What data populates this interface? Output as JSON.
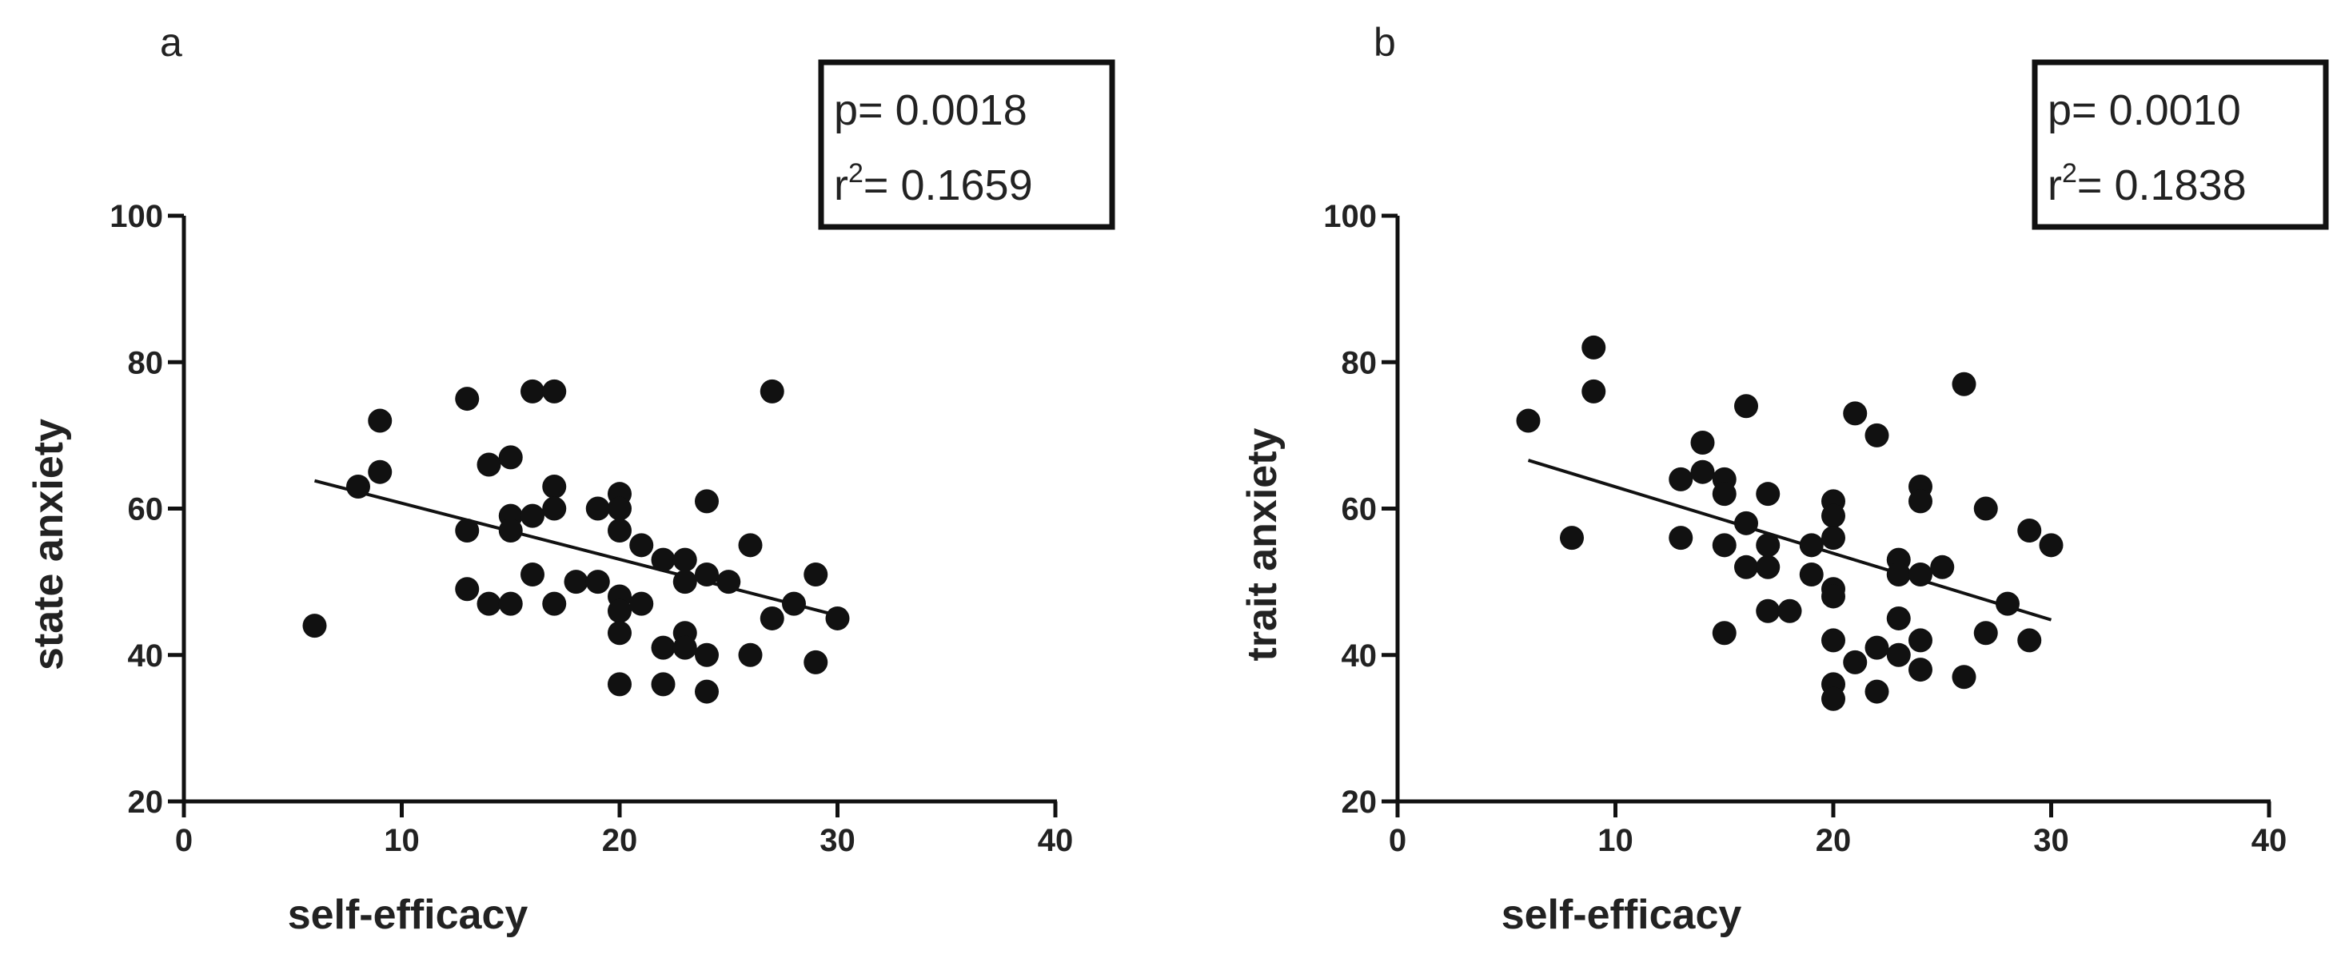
{
  "chart_data": [
    {
      "type": "scatter",
      "panel_label": "a",
      "xlabel": "self-efficacy",
      "ylabel": "state anxiety",
      "xlim": [
        0,
        40
      ],
      "ylim": [
        20,
        100
      ],
      "xticks": [
        0,
        10,
        20,
        30,
        40
      ],
      "yticks": [
        20,
        40,
        60,
        80,
        100
      ],
      "stats": {
        "p_text": "p= 0.0018",
        "r2_prefix": "r",
        "r2_sup": "2",
        "r2_value": "= 0.1659"
      },
      "fit_line": {
        "x": [
          6,
          30
        ],
        "y": [
          63.8,
          45.4
        ]
      },
      "points": [
        {
          "x": 6,
          "y": 44
        },
        {
          "x": 8,
          "y": 63
        },
        {
          "x": 9,
          "y": 72
        },
        {
          "x": 9,
          "y": 65
        },
        {
          "x": 13,
          "y": 75
        },
        {
          "x": 13,
          "y": 57
        },
        {
          "x": 13,
          "y": 49
        },
        {
          "x": 14,
          "y": 66
        },
        {
          "x": 14,
          "y": 47
        },
        {
          "x": 15,
          "y": 67
        },
        {
          "x": 15,
          "y": 59
        },
        {
          "x": 15,
          "y": 57
        },
        {
          "x": 15,
          "y": 47
        },
        {
          "x": 16,
          "y": 76
        },
        {
          "x": 16,
          "y": 59
        },
        {
          "x": 16,
          "y": 51
        },
        {
          "x": 17,
          "y": 76
        },
        {
          "x": 17,
          "y": 63
        },
        {
          "x": 17,
          "y": 60
        },
        {
          "x": 17,
          "y": 47
        },
        {
          "x": 18,
          "y": 50
        },
        {
          "x": 19,
          "y": 60
        },
        {
          "x": 19,
          "y": 50
        },
        {
          "x": 20,
          "y": 62
        },
        {
          "x": 20,
          "y": 60
        },
        {
          "x": 20,
          "y": 57
        },
        {
          "x": 20,
          "y": 48
        },
        {
          "x": 20,
          "y": 46
        },
        {
          "x": 20,
          "y": 43
        },
        {
          "x": 20,
          "y": 36
        },
        {
          "x": 21,
          "y": 55
        },
        {
          "x": 21,
          "y": 47
        },
        {
          "x": 22,
          "y": 53
        },
        {
          "x": 22,
          "y": 41
        },
        {
          "x": 22,
          "y": 36
        },
        {
          "x": 23,
          "y": 53
        },
        {
          "x": 23,
          "y": 50
        },
        {
          "x": 23,
          "y": 43
        },
        {
          "x": 23,
          "y": 41
        },
        {
          "x": 24,
          "y": 61
        },
        {
          "x": 24,
          "y": 51
        },
        {
          "x": 24,
          "y": 40
        },
        {
          "x": 24,
          "y": 35
        },
        {
          "x": 25,
          "y": 50
        },
        {
          "x": 26,
          "y": 55
        },
        {
          "x": 26,
          "y": 40
        },
        {
          "x": 27,
          "y": 76
        },
        {
          "x": 27,
          "y": 45
        },
        {
          "x": 28,
          "y": 47
        },
        {
          "x": 29,
          "y": 51
        },
        {
          "x": 29,
          "y": 39
        },
        {
          "x": 30,
          "y": 45
        }
      ]
    },
    {
      "type": "scatter",
      "panel_label": "b",
      "xlabel": "self-efficacy",
      "ylabel": "trait anxiety",
      "xlim": [
        0,
        40
      ],
      "ylim": [
        20,
        100
      ],
      "xticks": [
        0,
        10,
        20,
        30,
        40
      ],
      "yticks": [
        20,
        40,
        60,
        80,
        100
      ],
      "stats": {
        "p_text": "p= 0.0010",
        "r2_prefix": "r",
        "r2_sup": "2",
        "r2_value": "= 0.1838"
      },
      "fit_line": {
        "x": [
          6,
          30
        ],
        "y": [
          66.6,
          44.8
        ]
      },
      "points": [
        {
          "x": 6,
          "y": 72
        },
        {
          "x": 8,
          "y": 56
        },
        {
          "x": 9,
          "y": 82
        },
        {
          "x": 9,
          "y": 76
        },
        {
          "x": 13,
          "y": 64
        },
        {
          "x": 13,
          "y": 56
        },
        {
          "x": 14,
          "y": 69
        },
        {
          "x": 14,
          "y": 65
        },
        {
          "x": 15,
          "y": 64
        },
        {
          "x": 15,
          "y": 62
        },
        {
          "x": 15,
          "y": 55
        },
        {
          "x": 15,
          "y": 43
        },
        {
          "x": 16,
          "y": 74
        },
        {
          "x": 16,
          "y": 58
        },
        {
          "x": 16,
          "y": 52
        },
        {
          "x": 17,
          "y": 62
        },
        {
          "x": 17,
          "y": 55
        },
        {
          "x": 17,
          "y": 52
        },
        {
          "x": 17,
          "y": 46
        },
        {
          "x": 18,
          "y": 46
        },
        {
          "x": 19,
          "y": 55
        },
        {
          "x": 19,
          "y": 51
        },
        {
          "x": 20,
          "y": 61
        },
        {
          "x": 20,
          "y": 59
        },
        {
          "x": 20,
          "y": 56
        },
        {
          "x": 20,
          "y": 49
        },
        {
          "x": 20,
          "y": 48
        },
        {
          "x": 20,
          "y": 42
        },
        {
          "x": 20,
          "y": 36
        },
        {
          "x": 20,
          "y": 34
        },
        {
          "x": 21,
          "y": 73
        },
        {
          "x": 21,
          "y": 39
        },
        {
          "x": 22,
          "y": 70
        },
        {
          "x": 22,
          "y": 41
        },
        {
          "x": 22,
          "y": 35
        },
        {
          "x": 23,
          "y": 53
        },
        {
          "x": 23,
          "y": 51
        },
        {
          "x": 23,
          "y": 45
        },
        {
          "x": 23,
          "y": 40
        },
        {
          "x": 24,
          "y": 63
        },
        {
          "x": 24,
          "y": 61
        },
        {
          "x": 24,
          "y": 51
        },
        {
          "x": 24,
          "y": 42
        },
        {
          "x": 24,
          "y": 38
        },
        {
          "x": 25,
          "y": 52
        },
        {
          "x": 26,
          "y": 77
        },
        {
          "x": 26,
          "y": 37
        },
        {
          "x": 27,
          "y": 60
        },
        {
          "x": 27,
          "y": 43
        },
        {
          "x": 28,
          "y": 47
        },
        {
          "x": 29,
          "y": 57
        },
        {
          "x": 29,
          "y": 42
        },
        {
          "x": 30,
          "y": 55
        }
      ]
    }
  ]
}
